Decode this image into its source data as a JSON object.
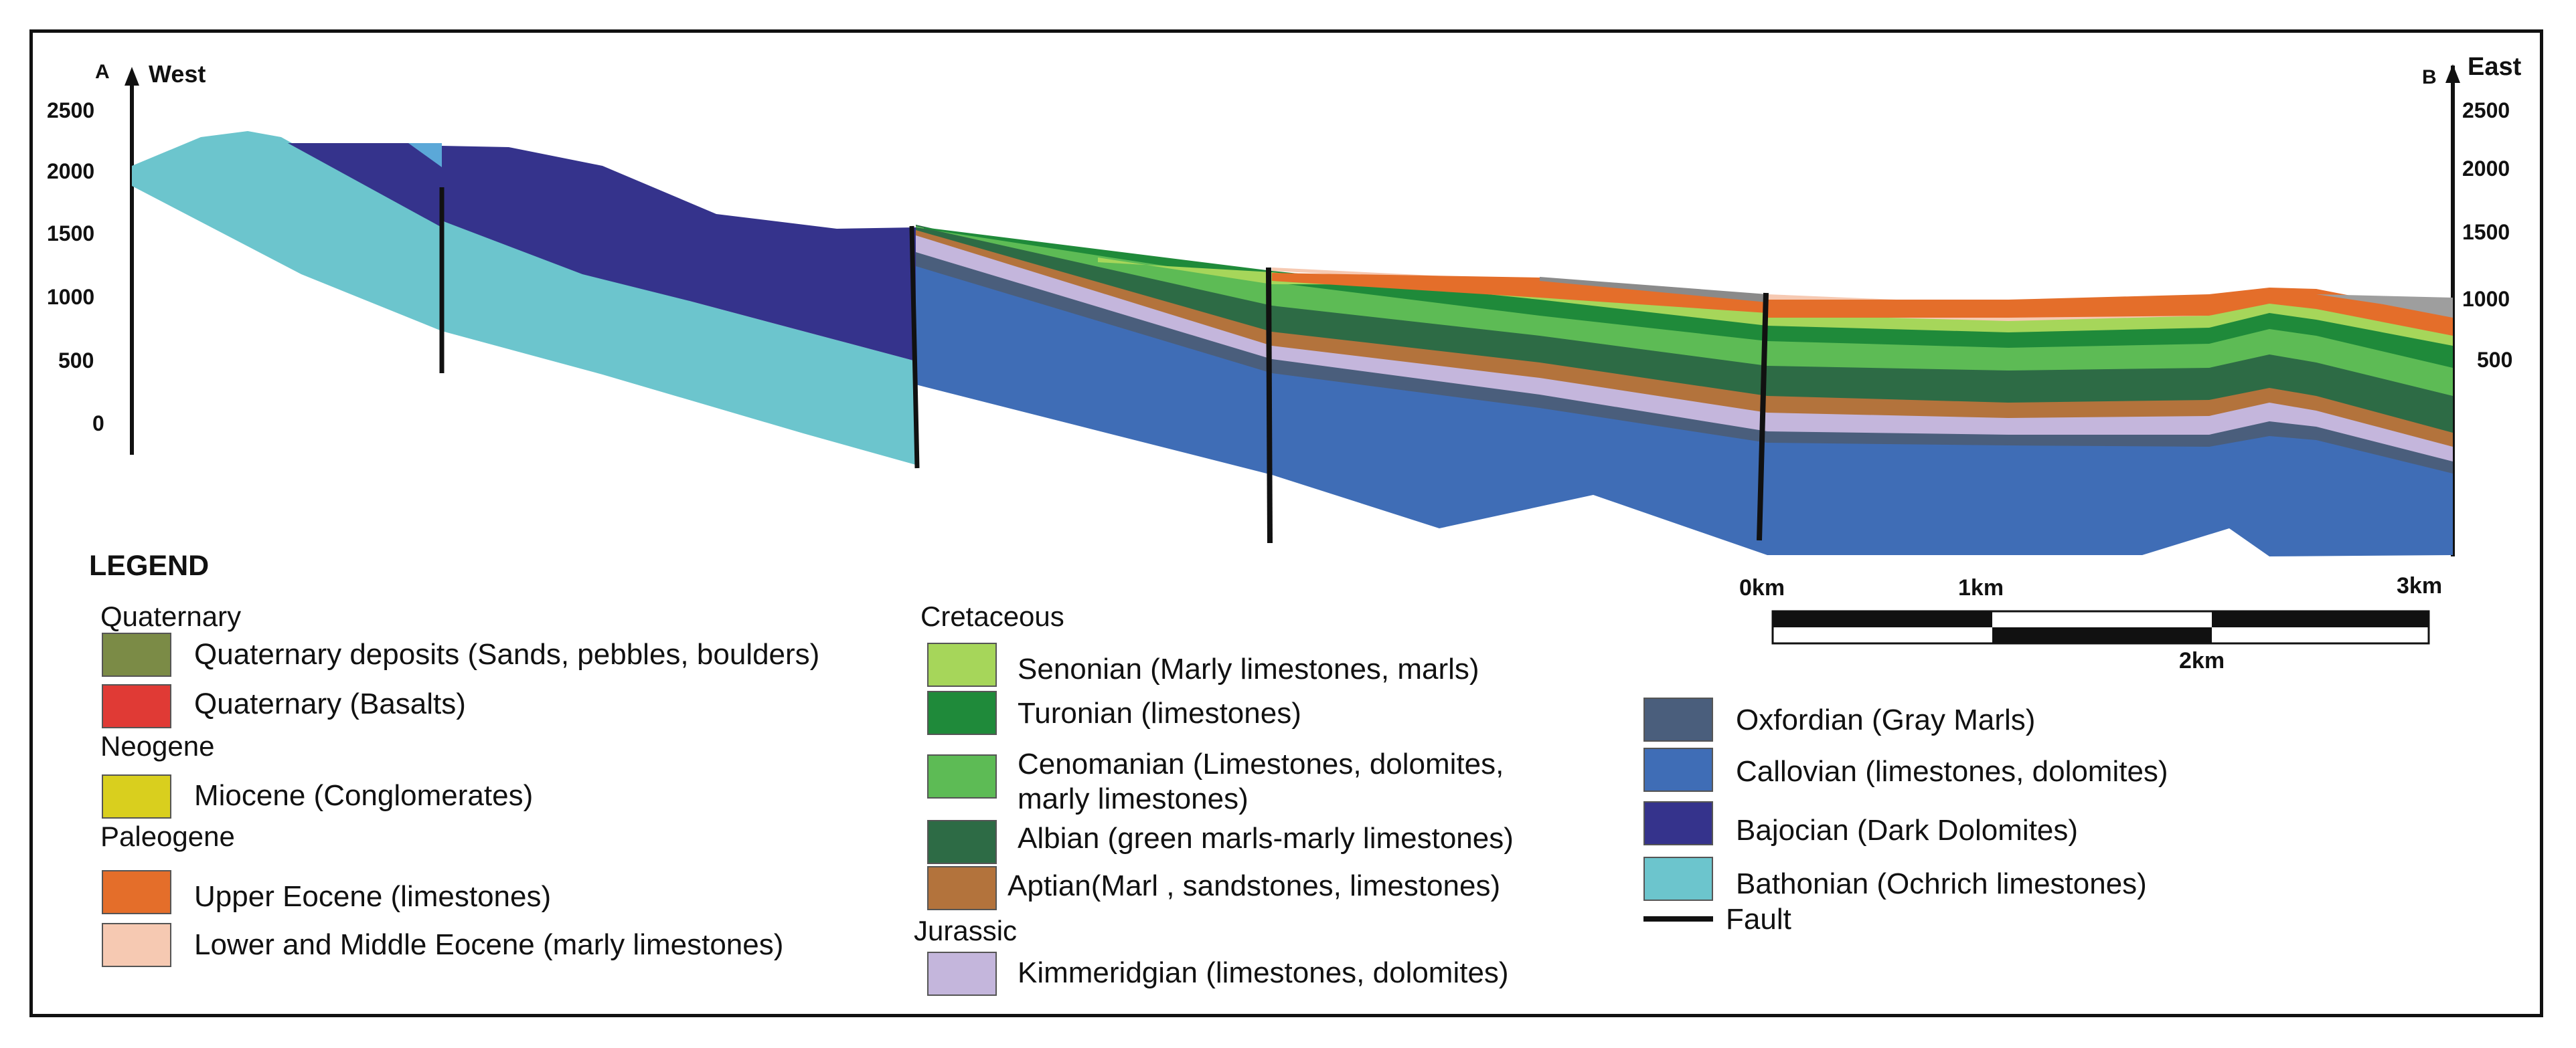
{
  "axes": {
    "point_a": "A",
    "point_b": "B",
    "west_label": "West",
    "east_label": "East",
    "left_ticks": [
      "2500",
      "2000",
      "1500",
      "1000",
      "500",
      "0"
    ],
    "right_ticks": [
      "2500",
      "2000",
      "1500",
      "1000",
      "500"
    ]
  },
  "scale_bar": {
    "labels": [
      "0km",
      "1km",
      "3km",
      "2km"
    ]
  },
  "legend": {
    "title": "LEGEND",
    "groups": [
      "Quaternary",
      "Neogene",
      "Paleogene",
      "Cretaceous",
      "Jurassic"
    ],
    "items": [
      {
        "label": "Quaternary deposits (Sands, pebbles, boulders)",
        "color": "#7b8b46"
      },
      {
        "label": "Quaternary (Basalts)",
        "color": "#e03a35"
      },
      {
        "label": "Miocene (Conglomerates)",
        "color": "#d9cf1e"
      },
      {
        "label": "Upper Eocene (limestones)",
        "color": "#e46e2a"
      },
      {
        "label": "Lower and Middle Eocene (marly limestones)",
        "color": "#f6c9b2"
      },
      {
        "label": "Senonian (Marly limestones, marls)",
        "color": "#a6d65a"
      },
      {
        "label": "Turonian (limestones)",
        "color": "#1f8a3a"
      },
      {
        "label": "Cenomanian (Limestones, dolomites,",
        "label2": "marly limestones)",
        "color": "#5dbb55"
      },
      {
        "label": "Albian  (green marls-marly limestones)",
        "color": "#2d6b45"
      },
      {
        "label": "Aptian(Marl , sandstones, limestones)",
        "color": "#b3733c"
      },
      {
        "label": "Kimmeridgian (limestones, dolomites)",
        "color": "#c4b6dc"
      },
      {
        "label": "Oxfordian (Gray Marls)",
        "color": "#4a5e7c"
      },
      {
        "label": "Callovian (limestones, dolomites)",
        "color": "#3f6db6"
      },
      {
        "label": "Bajocian (Dark Dolomites)",
        "color": "#35338c"
      },
      {
        "label": "Bathonian (Ochrich limestones)",
        "color": "#6cc5cd"
      },
      {
        "label": "Fault",
        "color": "#111111"
      }
    ]
  }
}
